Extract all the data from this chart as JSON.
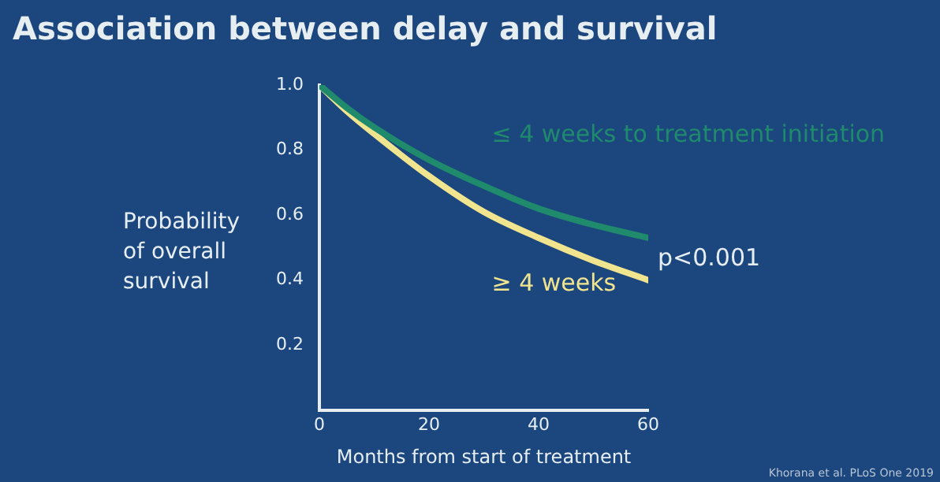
{
  "chart_data": {
    "type": "line",
    "title": "Association between delay and survival",
    "xlabel": "Months from start of treatment",
    "ylabel": "Probability of overall survival",
    "x": [
      0,
      5,
      10,
      20,
      30,
      40,
      50,
      60
    ],
    "series": [
      {
        "name": "≤ 4 weeks to treatment initiation",
        "color": "#1f8a6c",
        "values": [
          1.0,
          0.93,
          0.87,
          0.77,
          0.69,
          0.62,
          0.57,
          0.53
        ]
      },
      {
        "name": "≥ 4 weeks",
        "color": "#f1e48e",
        "values": [
          1.0,
          0.92,
          0.85,
          0.72,
          0.61,
          0.53,
          0.46,
          0.4
        ]
      }
    ],
    "xlim": [
      0,
      60
    ],
    "xticks": [
      0,
      20,
      40,
      60
    ],
    "ylim": [
      0,
      1.0
    ],
    "yticks": [
      {
        "value": 0.2,
        "label": "0.2"
      },
      {
        "value": 0.4,
        "label": "0.4"
      },
      {
        "value": 0.6,
        "label": "0.6"
      },
      {
        "value": 0.8,
        "label": "0.8"
      },
      {
        "value": 1.0,
        "label": "1.0"
      }
    ],
    "grid": false,
    "legend": false,
    "marker": "none",
    "line_style": "solid",
    "annotations": [
      "p<0.001",
      "Khorana et al. PLoS One 2019"
    ]
  }
}
